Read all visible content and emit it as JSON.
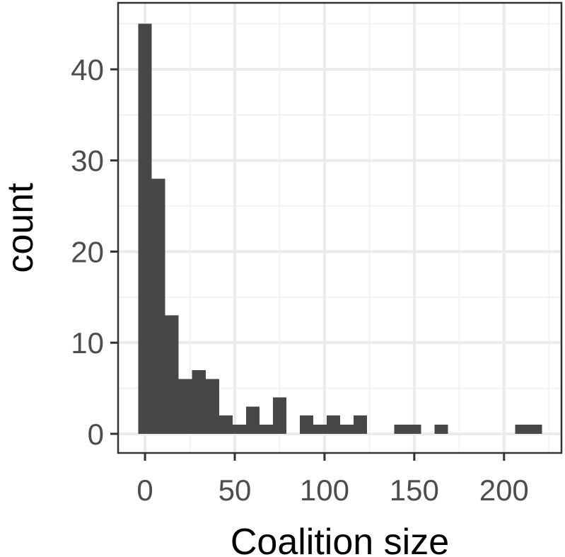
{
  "chart_data": {
    "type": "bar",
    "subtype": "histogram",
    "title": "",
    "xlabel": "Coalition size",
    "ylabel": "count",
    "xlim": [
      -15,
      232
    ],
    "ylim": [
      -2.1,
      47.3
    ],
    "xticks": [
      0,
      50,
      100,
      150,
      200
    ],
    "yticks": [
      0,
      10,
      20,
      30,
      40
    ],
    "grid": true,
    "legend": "none",
    "bin_width": 7.5,
    "bins": [
      {
        "x0": -3.75,
        "x1": 3.75,
        "count": 45
      },
      {
        "x0": 3.75,
        "x1": 11.25,
        "count": 28
      },
      {
        "x0": 11.25,
        "x1": 18.75,
        "count": 13
      },
      {
        "x0": 18.75,
        "x1": 26.25,
        "count": 6
      },
      {
        "x0": 26.25,
        "x1": 33.75,
        "count": 7
      },
      {
        "x0": 33.75,
        "x1": 41.25,
        "count": 6
      },
      {
        "x0": 41.25,
        "x1": 48.75,
        "count": 2
      },
      {
        "x0": 48.75,
        "x1": 56.25,
        "count": 1
      },
      {
        "x0": 56.25,
        "x1": 63.75,
        "count": 3
      },
      {
        "x0": 63.75,
        "x1": 71.25,
        "count": 1
      },
      {
        "x0": 71.25,
        "x1": 78.75,
        "count": 4
      },
      {
        "x0": 86.25,
        "x1": 93.75,
        "count": 2
      },
      {
        "x0": 93.75,
        "x1": 101.25,
        "count": 1
      },
      {
        "x0": 101.25,
        "x1": 108.75,
        "count": 2
      },
      {
        "x0": 108.75,
        "x1": 116.25,
        "count": 1
      },
      {
        "x0": 116.25,
        "x1": 123.75,
        "count": 2
      },
      {
        "x0": 138.75,
        "x1": 146.25,
        "count": 1
      },
      {
        "x0": 146.25,
        "x1": 153.75,
        "count": 1
      },
      {
        "x0": 161.25,
        "x1": 168.75,
        "count": 1
      },
      {
        "x0": 206.25,
        "x1": 213.75,
        "count": 1
      },
      {
        "x0": 213.75,
        "x1": 221.25,
        "count": 1
      }
    ],
    "colors": {
      "bar_fill": "#474747",
      "panel_border": "#333333",
      "grid_major": "#ebebeb",
      "grid_minor": "#f2f2f2",
      "tick_label": "#4d4d4d",
      "axis_title": "#000000",
      "background": "#ffffff"
    }
  }
}
